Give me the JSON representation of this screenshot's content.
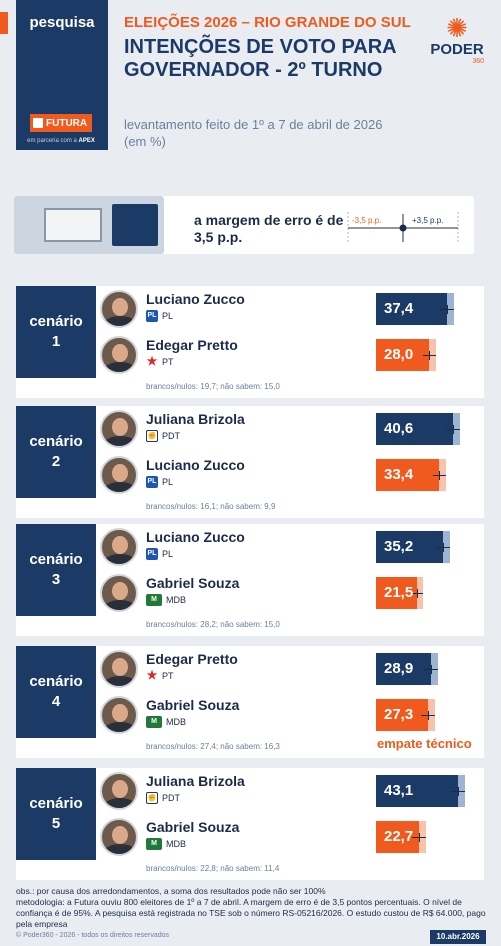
{
  "header": {
    "tag": "pesquisa",
    "kicker": "ELEIÇÕES 2026 – RIO GRANDE DO SUL",
    "title": "INTENÇÕES DE VOTO PARA GOVERNADOR - 2º TURNO",
    "subtitle": "levantamento feito de 1º a 7 de abril de 2026 (em %)",
    "pollster": "FUTURA",
    "partner_prefix": "em parceria com a",
    "partner": "APEX",
    "logo_name": "PODER",
    "logo_sub": "360"
  },
  "margin": {
    "label": "a margem de erro é de 3,5 p.p.",
    "minus": "-3,5 p.p.",
    "plus": "+3,5 p.p."
  },
  "colors": {
    "navy": "#1c3a66",
    "orange": "#f05a1e"
  },
  "chart_data": {
    "type": "bar",
    "unit": "%",
    "margin_of_error": 3.5,
    "xlim": [
      0,
      50
    ],
    "scenarios": [
      {
        "label_word": "cenário",
        "label_num": "1",
        "candidates": [
          {
            "name": "Luciano Zucco",
            "party": "PL",
            "value": 37.4,
            "display": "37,4",
            "color": "blue"
          },
          {
            "name": "Edegar Pretto",
            "party": "PT",
            "value": 28.0,
            "display": "28,0",
            "color": "orange"
          }
        ],
        "note": "brancos/nulos: 19,7; não sabem: 15,0"
      },
      {
        "label_word": "cenário",
        "label_num": "2",
        "candidates": [
          {
            "name": "Juliana Brizola",
            "party": "PDT",
            "value": 40.6,
            "display": "40,6",
            "color": "blue"
          },
          {
            "name": "Luciano Zucco",
            "party": "PL",
            "value": 33.4,
            "display": "33,4",
            "color": "orange"
          }
        ],
        "note": "brancos/nulos: 16,1; não sabem: 9,9"
      },
      {
        "label_word": "cenário",
        "label_num": "3",
        "candidates": [
          {
            "name": "Luciano Zucco",
            "party": "PL",
            "value": 35.2,
            "display": "35,2",
            "color": "blue"
          },
          {
            "name": "Gabriel Souza",
            "party": "MDB",
            "value": 21.5,
            "display": "21,5",
            "color": "orange"
          }
        ],
        "note": "brancos/nulos: 28,2; não sabem: 15,0"
      },
      {
        "label_word": "cenário",
        "label_num": "4",
        "candidates": [
          {
            "name": "Edegar Pretto",
            "party": "PT",
            "value": 28.9,
            "display": "28,9",
            "color": "blue"
          },
          {
            "name": "Gabriel Souza",
            "party": "MDB",
            "value": 27.3,
            "display": "27,3",
            "color": "orange"
          }
        ],
        "note": "brancos/nulos: 27,4; não sabem: 16,3",
        "annotation": "empate técnico"
      },
      {
        "label_word": "cenário",
        "label_num": "5",
        "candidates": [
          {
            "name": "Juliana Brizola",
            "party": "PDT",
            "value": 43.1,
            "display": "43,1",
            "color": "blue"
          },
          {
            "name": "Gabriel Souza",
            "party": "MDB",
            "value": 22.7,
            "display": "22,7",
            "color": "orange"
          }
        ],
        "note": "brancos/nulos: 22,8; não sabem: 11,4"
      }
    ]
  },
  "footer": {
    "obs": "obs.: por causa dos arredondamentos, a soma dos resultados pode não ser 100%",
    "method": "metodologia: a Futura ouviu 800 eleitores de 1º a 7 de abril. A margem de erro é de 3,5 pontos percentuais. O nível de confiança é de 95%. A pesquisa está registrada no TSE sob o número RS-05216/2026. O estudo custou de R$ 64.000, pago pela empresa",
    "copyright": "© Poder360 - 2026 - todos os direitos reservados",
    "date": "10.abr.2026"
  }
}
